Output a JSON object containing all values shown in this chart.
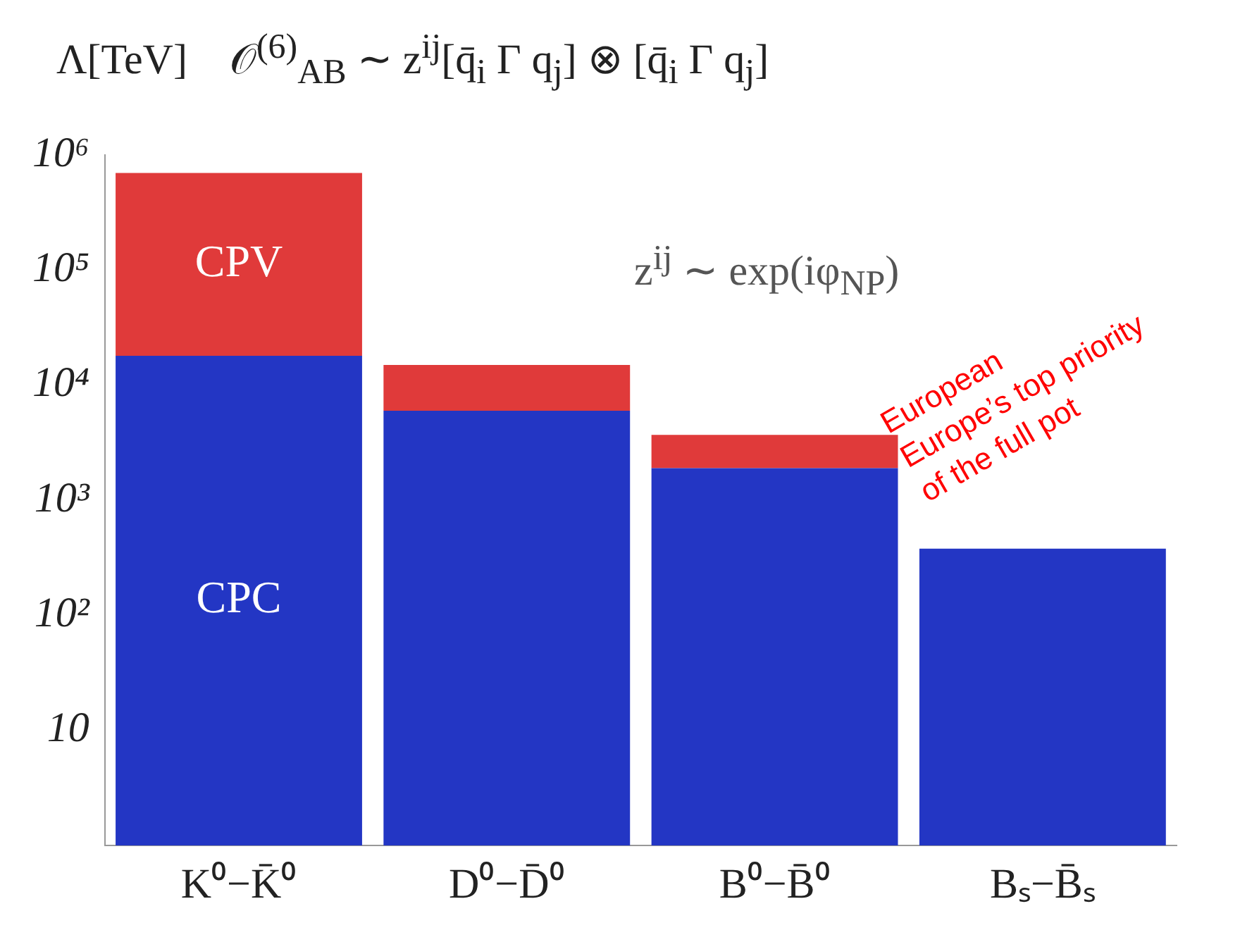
{
  "chart_data": {
    "type": "bar",
    "title": "𝒪$^{(6)}$$_{AB}$ ∼ z$^{ij}$[q̄$_{i}$ Γ q$_{j}$] ⊗ [q̄$_{i}$ Γ q$_{j}$]",
    "subtitle": "z$^{ij}$ ∼ exp(iφ$_{NP}$)",
    "ylabel": "Λ[TeV]",
    "categories": [
      "K⁰−K̄⁰",
      "D⁰−D̄⁰",
      "B⁰−B̄⁰",
      "Bₛ−B̄ₛ"
    ],
    "series": [
      {
        "name": "CPC",
        "color": "#2336c4",
        "values": [
          18000,
          6000,
          1900,
          380
        ]
      },
      {
        "name": "CPV",
        "color": "#e03a3a",
        "values": [
          680000,
          9000,
          1800,
          null
        ]
      }
    ],
    "stacked": true,
    "log": "y",
    "ylim": [
      1,
      1000000
    ],
    "yticks": [
      10,
      {
        "value": 100,
        "label": "10²"
      },
      {
        "value": 1000,
        "label": "10³"
      },
      {
        "value": 10000,
        "label": "10⁴"
      },
      {
        "value": 100000,
        "label": "10⁵"
      },
      {
        "value": 1000000,
        "label": "10⁶"
      }
    ],
    "annotations": [
      "European",
      "Europe’s top priority",
      "of the full pot"
    ]
  }
}
